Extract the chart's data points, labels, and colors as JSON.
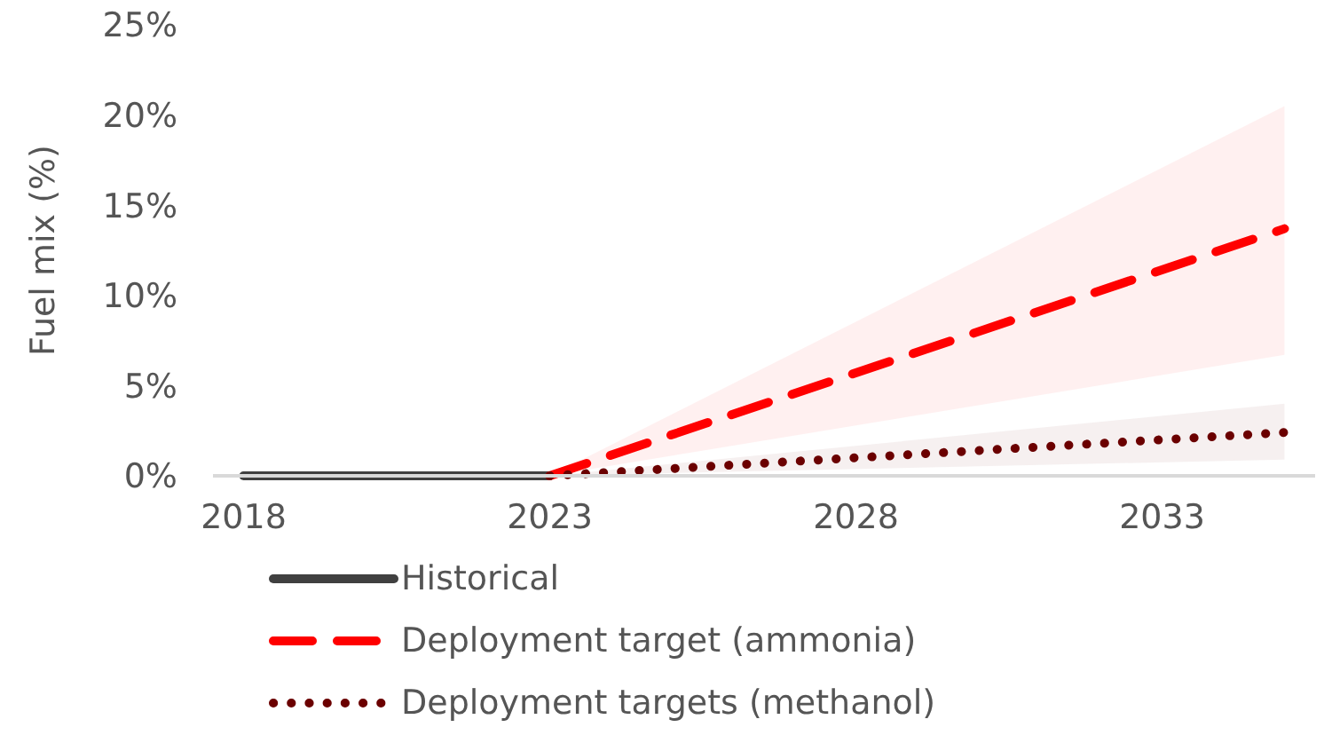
{
  "chart_data": {
    "type": "line",
    "ylabel": "Fuel mix (%)",
    "xlim": [
      2017.5,
      2035.5
    ],
    "xticks": [
      2018,
      2023,
      2028,
      2033
    ],
    "ylim": [
      0,
      25
    ],
    "yticks": [
      {
        "value": 0,
        "label": "0%"
      },
      {
        "value": 5,
        "label": "5%"
      },
      {
        "value": 10,
        "label": "10%"
      },
      {
        "value": 15,
        "label": "15%"
      },
      {
        "value": 20,
        "label": "20%"
      },
      {
        "value": 25,
        "label": "25%"
      }
    ],
    "legend": "bottom",
    "marker": "none",
    "series": [
      {
        "name": "Historical",
        "color": "#404040",
        "line_style": "solid",
        "x": [
          2018,
          2023
        ],
        "values": [
          0,
          0
        ]
      },
      {
        "name": "Deployment target (ammonia)",
        "color": "#ff0000",
        "line_style": "dashed",
        "x": [
          2023,
          2035
        ],
        "values": [
          0,
          13.7
        ],
        "lower": [
          0,
          6.7
        ],
        "upper": [
          0,
          20.5
        ]
      },
      {
        "name": "Deployment targets (methanol)",
        "color": "#6b0000",
        "line_style": "dotted",
        "x": [
          2023,
          2035
        ],
        "values": [
          0,
          2.4
        ],
        "lower": [
          0,
          0.9
        ],
        "upper": [
          0,
          4.0
        ]
      }
    ]
  }
}
